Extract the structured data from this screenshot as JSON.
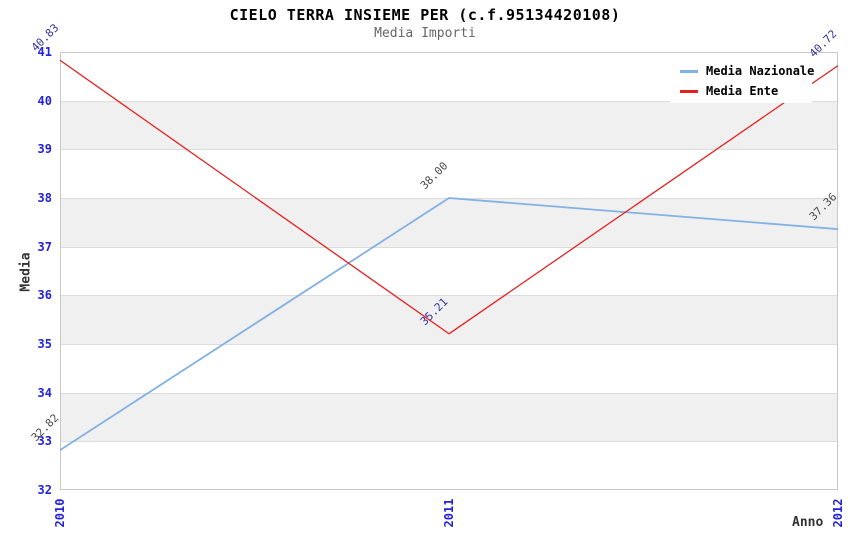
{
  "chart_data": {
    "type": "line",
    "title": "CIELO TERRA INSIEME PER (c.f.95134420108)",
    "subtitle": "Media Importi",
    "xlabel": "Anno",
    "ylabel": "Media",
    "x": [
      2010,
      2011,
      2012
    ],
    "xtick_labels": [
      "2010",
      "2011",
      "2012"
    ],
    "ylim": [
      32,
      41
    ],
    "ytick_labels": [
      "32",
      "33",
      "34",
      "35",
      "36",
      "37",
      "38",
      "39",
      "40",
      "41"
    ],
    "grid": true,
    "alternating_bands": true,
    "legend_position": "top-right",
    "series": [
      {
        "name": "Media Nazionale",
        "color": "#82b1e3",
        "values": [
          32.82,
          38.0,
          37.36
        ],
        "point_labels": [
          "32.82",
          "38.00",
          "37.36"
        ],
        "label_color": "#4d4d4d"
      },
      {
        "name": "Media Ente",
        "color": "#e62020",
        "values": [
          40.83,
          35.21,
          40.72
        ],
        "point_labels": [
          "40.83",
          "35.21",
          "40.72"
        ],
        "label_color": "#333399"
      }
    ],
    "colors": {
      "tick_labels": "#2222dd",
      "axis_labels": "#333333",
      "title": "#000000",
      "subtitle": "#666666",
      "band": "#f0f0f0",
      "gridline": "#dcdcdc",
      "plot_border": "#c8c8c8",
      "background": "#ffffff"
    }
  }
}
